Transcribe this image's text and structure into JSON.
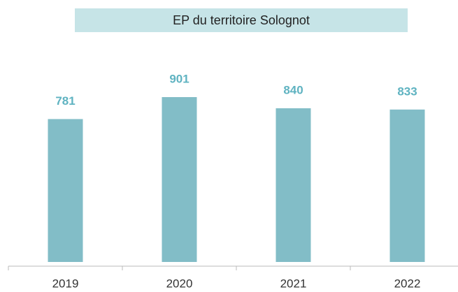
{
  "chart_data": {
    "type": "bar",
    "title": "EP du territoire Solognot",
    "categories": [
      "2019",
      "2020",
      "2021",
      "2022"
    ],
    "values": [
      781,
      901,
      840,
      833
    ],
    "color": "#82bdc7"
  }
}
